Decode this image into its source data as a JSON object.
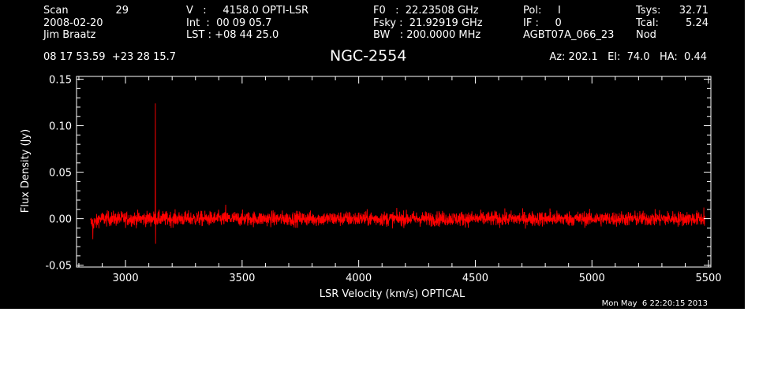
{
  "header": {
    "scan_label": "Scan",
    "scan_number": "29",
    "date": "2008-02-20",
    "observer": "Jim Braatz",
    "velocity": "V   :     4158.0 OPTI-LSR",
    "int_time": "Int  :  00 09 05.7",
    "lst": "LST : +08 44 25.0",
    "f0": "F0   :  22.23508 GHz",
    "fsky": "Fsky :  21.92919 GHz",
    "bw": "BW   : 200.0000 MHz",
    "pol": "Pol:     I",
    "if": "IF :     0",
    "project": "AGBT07A_066_23",
    "tsys_label": "Tsys:",
    "tsys_value": "32.71",
    "tcal_label": "Tcal:",
    "tcal_value": "5.24",
    "mode": "Nod",
    "coords": "08 17 53.59  +23 28 15.7",
    "source": "NGC-2554",
    "az_el_ha": "Az: 202.1   El:  74.0   HA:  0.44",
    "timestamp": "Mon May  6 22:20:15 2013"
  },
  "colors": {
    "background": "#000000",
    "foreground": "#ffffff",
    "series": "#ff0000"
  },
  "chart_data": {
    "type": "line",
    "xlabel": "LSR Velocity (km/s) OPTICAL",
    "ylabel": "Flux Density (Jy)",
    "xlim": [
      2790,
      5510
    ],
    "ylim": [
      -0.052,
      0.153
    ],
    "x_ticks": [
      3000,
      3500,
      4000,
      4500,
      5000,
      5500
    ],
    "y_ticks": [
      -0.05,
      0.0,
      0.05,
      0.1,
      0.15
    ],
    "y_tick_labels": [
      "-0.05",
      "0.00",
      "0.05",
      "0.10",
      "0.15"
    ],
    "grid": false,
    "series": [
      {
        "x_range": [
          2850,
          5485
        ],
        "noise_rms_jy": 0.004,
        "features": [
          {
            "x": 3128,
            "value": 0.124
          },
          {
            "x": 3128,
            "value": -0.027
          },
          {
            "x": 2860,
            "value": -0.022
          },
          {
            "x": 3430,
            "value": 0.015
          },
          {
            "x": 4820,
            "value": 0.011
          },
          {
            "x": 5480,
            "value": 0.012
          }
        ]
      }
    ]
  }
}
